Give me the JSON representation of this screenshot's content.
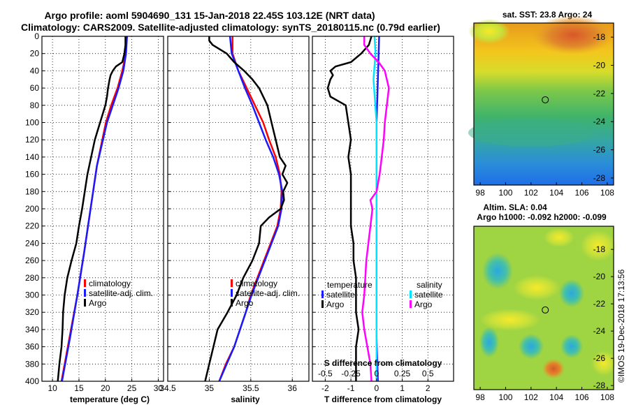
{
  "title": {
    "line1": "Argo profile: aoml 5904690_131 15-Jan-2018 22.45S 103.12E (NRT data)",
    "line2": "Climatology: CARS2009. Satellite-adjusted climatology: synTS_20180115.nc (0.79d earlier)"
  },
  "watermark": "©IMOS 19-Dec-2018 17:13:56",
  "colors": {
    "argo": "#000000",
    "clim": "#ff0000",
    "sat": "#1a1aff",
    "cyan": "#00e5ff",
    "magenta": "#ff00ff"
  },
  "chart_data": [
    {
      "type": "line",
      "panel": "temperature",
      "xlabel": "temperature (deg C)",
      "ylabel": "",
      "xlim": [
        8,
        31
      ],
      "ylim": [
        400,
        0
      ],
      "x_ticks": [
        10,
        15,
        20,
        25,
        30
      ],
      "y_ticks": [
        0,
        20,
        40,
        60,
        80,
        100,
        120,
        140,
        160,
        180,
        200,
        220,
        240,
        260,
        280,
        300,
        320,
        340,
        360,
        380,
        400
      ],
      "grid": true,
      "legend": [
        "climatology",
        "satellite-adj. clim.",
        "Argo"
      ],
      "series": [
        {
          "name": "climatology",
          "color": "red",
          "y": [
            0,
            20,
            40,
            60,
            80,
            100,
            150,
            200,
            250,
            300,
            350,
            400
          ],
          "values": [
            24,
            23.9,
            23.2,
            22.3,
            21.1,
            20.1,
            18.4,
            17.2,
            16.0,
            14.7,
            13.2,
            11.7
          ]
        },
        {
          "name": "satellite-adj. clim.",
          "color": "blue",
          "y": [
            0,
            20,
            40,
            60,
            80,
            100,
            150,
            200,
            250,
            300,
            350,
            400
          ],
          "values": [
            24.1,
            23.9,
            23.4,
            22.5,
            21.4,
            20.3,
            18.4,
            17.2,
            16.0,
            14.7,
            13.3,
            11.8
          ]
        },
        {
          "name": "Argo",
          "color": "black",
          "y": [
            0,
            10,
            20,
            30,
            35,
            40,
            45,
            50,
            60,
            70,
            80,
            100,
            120,
            140,
            160,
            180,
            200,
            220,
            240,
            260,
            280,
            300,
            320,
            340,
            360,
            380,
            400
          ],
          "values": [
            23.8,
            23.8,
            23.6,
            23.2,
            22.0,
            21.4,
            21.0,
            20.8,
            20.5,
            20.3,
            20.0,
            19.0,
            18.0,
            17.3,
            16.6,
            16.1,
            15.6,
            15.0,
            14.5,
            13.6,
            12.8,
            12.3,
            12.0,
            11.9,
            11.7,
            11.3,
            11.0
          ]
        }
      ]
    },
    {
      "type": "line",
      "panel": "salinity",
      "xlabel": "salinity",
      "xlim": [
        34.5,
        36.2
      ],
      "ylim": [
        400,
        0
      ],
      "x_ticks": [
        34.5,
        35,
        35.5,
        36
      ],
      "grid": true,
      "legend": [
        "climatology",
        "satellite-adj. clim.",
        "Argo"
      ],
      "series": [
        {
          "name": "climatology",
          "color": "red",
          "y": [
            0,
            20,
            40,
            60,
            80,
            100,
            120,
            140,
            160,
            180,
            200,
            220,
            240,
            260,
            280,
            300,
            320,
            340,
            360,
            380,
            400
          ],
          "values": [
            35.28,
            35.28,
            35.35,
            35.45,
            35.55,
            35.65,
            35.72,
            35.8,
            35.85,
            35.87,
            35.86,
            35.82,
            35.74,
            35.66,
            35.58,
            35.5,
            35.44,
            35.37,
            35.3,
            35.2,
            35.12
          ]
        },
        {
          "name": "satellite-adj. clim.",
          "color": "blue",
          "y": [
            0,
            20,
            40,
            60,
            80,
            100,
            120,
            140,
            160,
            180,
            200,
            220,
            240,
            260,
            280,
            300,
            320,
            340,
            360,
            380,
            400
          ],
          "values": [
            35.25,
            35.27,
            35.35,
            35.43,
            35.52,
            35.6,
            35.68,
            35.77,
            35.84,
            35.88,
            35.87,
            35.83,
            35.75,
            35.67,
            35.59,
            35.51,
            35.44,
            35.37,
            35.3,
            35.21,
            35.12
          ]
        },
        {
          "name": "Argo",
          "color": "black",
          "y": [
            0,
            5,
            10,
            20,
            30,
            40,
            50,
            60,
            80,
            100,
            120,
            140,
            150,
            160,
            170,
            180,
            190,
            200,
            210,
            220,
            240,
            260,
            280,
            300,
            320,
            340,
            360,
            380,
            400
          ],
          "values": [
            35.0,
            35.0,
            35.04,
            35.21,
            35.3,
            35.42,
            35.52,
            35.6,
            35.7,
            35.75,
            35.8,
            35.85,
            35.92,
            35.88,
            35.94,
            35.89,
            35.9,
            35.86,
            35.72,
            35.62,
            35.6,
            35.52,
            35.41,
            35.33,
            35.22,
            35.1,
            35.05,
            35.0,
            34.95
          ]
        }
      ]
    },
    {
      "type": "line",
      "panel": "difference from climatology",
      "xlabel": "T difference from climatology",
      "x2label": "S difference from climatology",
      "xlim": [
        -2.5,
        3.0
      ],
      "x2lim": [
        -0.625,
        0.75
      ],
      "ylim": [
        400,
        0
      ],
      "x_ticks": [
        -2,
        -1,
        0,
        1,
        2
      ],
      "x2_ticks": [
        -0.5,
        -0.25,
        0,
        0.25,
        0.5
      ],
      "x2_tick_labels": [
        "-0.5",
        "-0.25",
        "0",
        "0.25",
        "0.5"
      ],
      "grid": true,
      "legend_headers": [
        "temperature",
        "salinity"
      ],
      "legend": [
        "satellite",
        "Argo",
        "satellite",
        "Argo"
      ],
      "series": [
        {
          "name": "temperature satellite",
          "color": "blue",
          "y": [
            0,
            50,
            100,
            150,
            200,
            250,
            300,
            350,
            400
          ],
          "values": [
            0.1,
            0.05,
            0.0,
            0.0,
            0.0,
            0.0,
            0.0,
            0.0,
            0.05
          ]
        },
        {
          "name": "temperature Argo",
          "color": "black",
          "y": [
            0,
            10,
            20,
            30,
            35,
            40,
            45,
            50,
            60,
            70,
            80,
            100,
            120,
            140,
            160,
            180,
            200,
            220,
            240,
            260,
            280,
            300,
            320,
            340,
            360,
            380,
            400
          ],
          "values": [
            -0.2,
            -0.3,
            -0.6,
            -1.0,
            -1.6,
            -1.8,
            -1.7,
            -1.8,
            -1.9,
            -1.8,
            -1.2,
            -1.1,
            -1.0,
            -1.1,
            -1.0,
            -1.0,
            -1.0,
            -1.0,
            -0.9,
            -0.9,
            -0.8,
            -0.8,
            -0.8,
            -0.7,
            -0.8,
            -0.8,
            -0.8
          ]
        },
        {
          "name": "salinity satellite",
          "color": "cyan",
          "y": [
            0,
            20,
            50,
            100,
            150,
            200,
            250,
            300,
            350,
            400
          ],
          "values": [
            -0.02,
            -0.01,
            -0.03,
            0.0,
            0.0,
            0.0,
            0.0,
            0.0,
            0.0,
            0.0
          ]
        },
        {
          "name": "salinity Argo",
          "color": "magenta",
          "y": [
            0,
            10,
            20,
            30,
            40,
            50,
            60,
            80,
            100,
            120,
            140,
            160,
            180,
            190,
            200,
            220,
            240,
            260,
            280,
            300,
            320,
            340,
            360,
            380,
            400
          ],
          "values": [
            -0.12,
            -0.12,
            -0.06,
            0.02,
            0.08,
            0.1,
            0.12,
            0.1,
            0.08,
            0.07,
            0.05,
            0.03,
            0.0,
            -0.06,
            -0.04,
            -0.06,
            -0.08,
            -0.1,
            -0.11,
            -0.12,
            -0.14,
            -0.12,
            -0.09,
            -0.06,
            -0.05
          ]
        }
      ]
    },
    {
      "type": "heatmap",
      "panel": "sst map",
      "title": "sat. SST: 23.8 Argo: 24",
      "xlim": [
        97.5,
        108.5
      ],
      "ylim": [
        -28.5,
        -17
      ],
      "x_ticks": [
        98,
        100,
        102,
        104,
        106,
        108
      ],
      "y_ticks": [
        -18,
        -20,
        -22,
        -24,
        -26,
        -28
      ],
      "marker": {
        "lon": 103.12,
        "lat": -22.45
      }
    },
    {
      "type": "heatmap",
      "panel": "sla map",
      "title": "Altim. SLA: 0.04",
      "subtitle": "Argo h1000: -0.092 h2000: -0.099",
      "xlim": [
        97.5,
        108.5
      ],
      "ylim": [
        -28.3,
        -16.3
      ],
      "x_ticks": [
        98,
        100,
        102,
        104,
        106,
        108
      ],
      "y_ticks": [
        -18,
        -20,
        -22,
        -24,
        -26,
        -28
      ],
      "marker": {
        "lon": 103.12,
        "lat": -22.45
      }
    }
  ]
}
